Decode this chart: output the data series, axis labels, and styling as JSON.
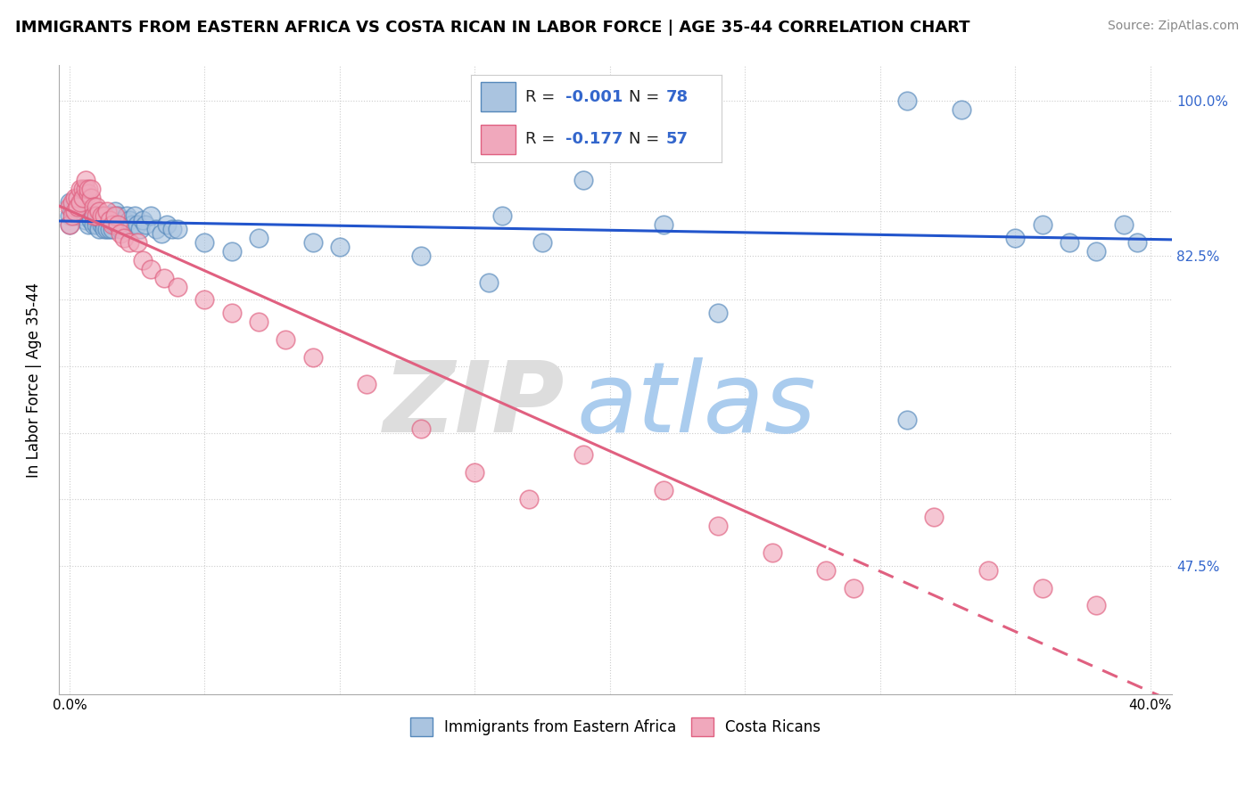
{
  "title": "IMMIGRANTS FROM EASTERN AFRICA VS COSTA RICAN IN LABOR FORCE | AGE 35-44 CORRELATION CHART",
  "source": "Source: ZipAtlas.com",
  "ylabel": "In Labor Force | Age 35-44",
  "xlim_min": -0.004,
  "xlim_max": 0.408,
  "ylim_min": 0.33,
  "ylim_max": 1.04,
  "color_blue_fill": "#aac4e0",
  "color_blue_edge": "#5588bb",
  "color_pink_fill": "#f0a8bc",
  "color_pink_edge": "#e06080",
  "color_blue_line": "#2255cc",
  "color_pink_line": "#e06080",
  "R1": "-0.001",
  "N1": "78",
  "R2": "-0.177",
  "N2": "57",
  "legend_rn_color": "#3366cc",
  "ytick_positions": [
    0.475,
    0.55,
    0.625,
    0.7,
    0.775,
    0.825,
    0.875,
    1.0
  ],
  "ytick_labels_right": [
    "47.5%",
    "",
    "",
    "",
    "",
    "82.5%",
    "",
    "100.0%"
  ],
  "ytick_dotted": [
    0.475,
    0.55,
    0.625,
    0.7,
    0.775,
    0.825,
    0.875,
    1.0
  ],
  "xtick_positions": [
    0.0,
    0.05,
    0.1,
    0.15,
    0.2,
    0.25,
    0.3,
    0.35,
    0.4
  ],
  "xtick_labels": [
    "0.0%",
    "",
    "",
    "",
    "",
    "",
    "",
    "",
    "40.0%"
  ],
  "blue_x": [
    0.0,
    0.0,
    0.0,
    0.001,
    0.001,
    0.002,
    0.002,
    0.003,
    0.003,
    0.004,
    0.004,
    0.005,
    0.005,
    0.006,
    0.006,
    0.007,
    0.007,
    0.007,
    0.008,
    0.008,
    0.009,
    0.009,
    0.01,
    0.01,
    0.011,
    0.011,
    0.012,
    0.012,
    0.013,
    0.013,
    0.014,
    0.014,
    0.015,
    0.015,
    0.016,
    0.016,
    0.017,
    0.017,
    0.018,
    0.018,
    0.019,
    0.02,
    0.02,
    0.021,
    0.022,
    0.023,
    0.024,
    0.025,
    0.026,
    0.027,
    0.028,
    0.03,
    0.032,
    0.034,
    0.036,
    0.038,
    0.04,
    0.05,
    0.06,
    0.07,
    0.09,
    0.1,
    0.13,
    0.155,
    0.16,
    0.175,
    0.19,
    0.22,
    0.24,
    0.31,
    0.35,
    0.36,
    0.37,
    0.38,
    0.39,
    0.395,
    0.31,
    0.33
  ],
  "blue_y": [
    0.885,
    0.87,
    0.86,
    0.875,
    0.88,
    0.88,
    0.875,
    0.88,
    0.87,
    0.87,
    0.875,
    0.875,
    0.87,
    0.875,
    0.865,
    0.875,
    0.87,
    0.86,
    0.87,
    0.865,
    0.86,
    0.87,
    0.865,
    0.86,
    0.87,
    0.855,
    0.86,
    0.865,
    0.86,
    0.855,
    0.87,
    0.855,
    0.87,
    0.855,
    0.87,
    0.855,
    0.86,
    0.875,
    0.87,
    0.86,
    0.855,
    0.865,
    0.86,
    0.87,
    0.865,
    0.86,
    0.87,
    0.86,
    0.855,
    0.865,
    0.86,
    0.87,
    0.855,
    0.85,
    0.86,
    0.855,
    0.855,
    0.84,
    0.83,
    0.845,
    0.84,
    0.835,
    0.825,
    0.795,
    0.87,
    0.84,
    0.91,
    0.86,
    0.76,
    0.64,
    0.845,
    0.86,
    0.84,
    0.83,
    0.86,
    0.84,
    1.0,
    0.99
  ],
  "pink_x": [
    0.0,
    0.0,
    0.001,
    0.001,
    0.002,
    0.002,
    0.003,
    0.003,
    0.004,
    0.004,
    0.005,
    0.005,
    0.006,
    0.006,
    0.007,
    0.007,
    0.008,
    0.008,
    0.009,
    0.009,
    0.01,
    0.01,
    0.011,
    0.012,
    0.013,
    0.014,
    0.015,
    0.016,
    0.017,
    0.018,
    0.019,
    0.02,
    0.022,
    0.025,
    0.027,
    0.03,
    0.035,
    0.04,
    0.05,
    0.06,
    0.07,
    0.08,
    0.09,
    0.11,
    0.13,
    0.15,
    0.17,
    0.19,
    0.22,
    0.24,
    0.26,
    0.28,
    0.29,
    0.32,
    0.34,
    0.36,
    0.38
  ],
  "pink_y": [
    0.88,
    0.86,
    0.885,
    0.87,
    0.89,
    0.875,
    0.89,
    0.88,
    0.9,
    0.885,
    0.9,
    0.89,
    0.9,
    0.91,
    0.895,
    0.9,
    0.89,
    0.9,
    0.88,
    0.87,
    0.88,
    0.87,
    0.875,
    0.87,
    0.87,
    0.875,
    0.865,
    0.86,
    0.87,
    0.86,
    0.85,
    0.845,
    0.84,
    0.84,
    0.82,
    0.81,
    0.8,
    0.79,
    0.775,
    0.76,
    0.75,
    0.73,
    0.71,
    0.68,
    0.63,
    0.58,
    0.55,
    0.6,
    0.56,
    0.52,
    0.49,
    0.47,
    0.45,
    0.53,
    0.47,
    0.45,
    0.43
  ]
}
